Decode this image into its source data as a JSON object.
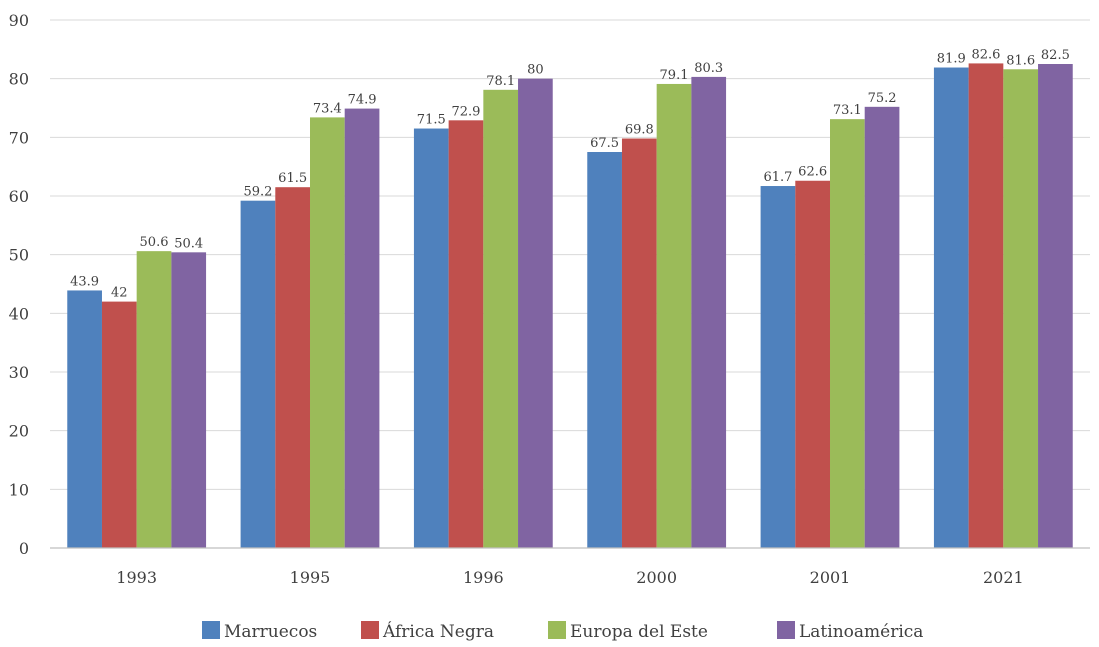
{
  "chart_data": {
    "type": "bar",
    "title": "",
    "xlabel": "",
    "ylabel": "",
    "categories": [
      "1993",
      "1995",
      "1996",
      "2000",
      "2001",
      "2021"
    ],
    "ylim": [
      0,
      90
    ],
    "yticks": [
      0,
      10,
      20,
      30,
      40,
      50,
      60,
      70,
      80,
      90
    ],
    "grid": "horizontal",
    "legend_position": "bottom",
    "series": [
      {
        "name": "Marruecos",
        "color": "#4F81BD",
        "values": [
          43.9,
          59.2,
          71.5,
          67.5,
          61.7,
          81.9
        ]
      },
      {
        "name": "África Negra",
        "color": "#C0504D",
        "values": [
          42,
          61.5,
          72.9,
          69.8,
          62.6,
          82.6
        ]
      },
      {
        "name": "Europa del Este",
        "color": "#9BBB59",
        "values": [
          50.6,
          73.4,
          78.1,
          79.1,
          73.1,
          81.6
        ]
      },
      {
        "name": "Latinoamérica",
        "color": "#8064A2",
        "values": [
          50.4,
          74.9,
          80,
          80.3,
          75.2,
          82.5
        ]
      }
    ]
  }
}
